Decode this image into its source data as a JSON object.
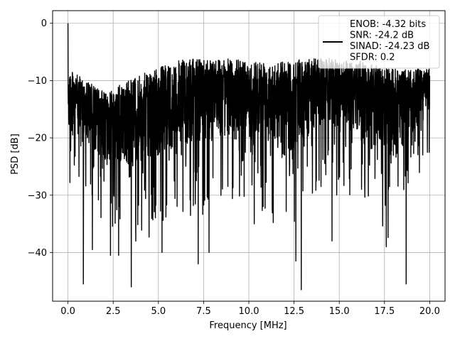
{
  "chart_data": {
    "type": "line",
    "xlabel": "Frequency [MHz]",
    "ylabel": "PSD [dB]",
    "xlim": [
      -0.85,
      20.85
    ],
    "ylim": [
      -48.5,
      2.2
    ],
    "xticks": [
      0.0,
      2.5,
      5.0,
      7.5,
      10.0,
      12.5,
      15.0,
      17.5,
      20.0
    ],
    "xtick_labels": [
      "0.0",
      "2.5",
      "5.0",
      "7.5",
      "10.0",
      "12.5",
      "15.0",
      "17.5",
      "20.0"
    ],
    "yticks": [
      0,
      -10,
      -20,
      -30,
      -40
    ],
    "ytick_labels": [
      "0",
      "−10",
      "−20",
      "−30",
      "−40"
    ],
    "grid": true,
    "legend_position": "top-right",
    "series": [
      {
        "name": "ENOB: -4.32 bits\nSNR: -24.2 dB\nSINAD: -24.23 dB\nSFDR: 0.2",
        "color": "#000000",
        "x_range": [
          0.0,
          20.0
        ],
        "peak": {
          "x": 0.0,
          "y": 0.0
        },
        "envelope": {
          "x": [
            0.0,
            2.0,
            4.0,
            6.0,
            8.0,
            10.0,
            12.0,
            14.0,
            16.0,
            18.0,
            20.0
          ],
          "upper": [
            -8.0,
            -12.0,
            -9.0,
            -6.5,
            -6.0,
            -6.5,
            -6.5,
            -6.0,
            -6.5,
            -8.0,
            -8.0
          ],
          "lower": [
            -34.0,
            -40.0,
            -46.0,
            -42.0,
            -40.0,
            -35.0,
            -46.0,
            -34.0,
            -37.0,
            -45.5,
            -26.0
          ]
        },
        "deep_dips": [
          {
            "x": 0.85,
            "y": -45.5
          },
          {
            "x": 1.35,
            "y": -39.5
          },
          {
            "x": 2.35,
            "y": -40.5
          },
          {
            "x": 2.8,
            "y": -40.5
          },
          {
            "x": 3.5,
            "y": -46.0
          },
          {
            "x": 5.2,
            "y": -40.0
          },
          {
            "x": 7.2,
            "y": -42.0
          },
          {
            "x": 7.8,
            "y": -40.0
          },
          {
            "x": 10.3,
            "y": -35.0
          },
          {
            "x": 12.9,
            "y": -46.5
          },
          {
            "x": 12.6,
            "y": -41.5
          },
          {
            "x": 14.6,
            "y": -38.0
          },
          {
            "x": 17.6,
            "y": -39.0
          },
          {
            "x": 18.7,
            "y": -45.5
          }
        ]
      }
    ]
  }
}
